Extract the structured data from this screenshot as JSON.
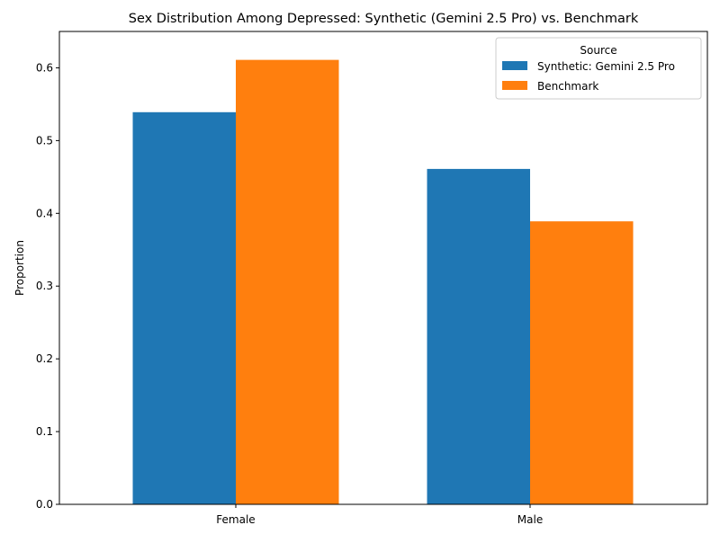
{
  "chart_data": {
    "type": "bar",
    "title": "Sex Distribution Among Depressed: Synthetic (Gemini 2.5 Pro) vs. Benchmark",
    "xlabel": "",
    "ylabel": "Proportion",
    "categories": [
      "Female",
      "Male"
    ],
    "series": [
      {
        "name": "Synthetic: Gemini 2.5 Pro",
        "color": "#1f77b4",
        "values": [
          0.539,
          0.461
        ]
      },
      {
        "name": "Benchmark",
        "color": "#ff7f0e",
        "values": [
          0.611,
          0.389
        ]
      }
    ],
    "ylim": [
      0,
      0.65
    ],
    "yticks": [
      0.0,
      0.1,
      0.2,
      0.3,
      0.4,
      0.5,
      0.6
    ],
    "ytick_labels": [
      "0.0",
      "0.1",
      "0.2",
      "0.3",
      "0.4",
      "0.5",
      "0.6"
    ],
    "grid": false,
    "legend": {
      "title": "Source",
      "placement": "top-right"
    }
  }
}
